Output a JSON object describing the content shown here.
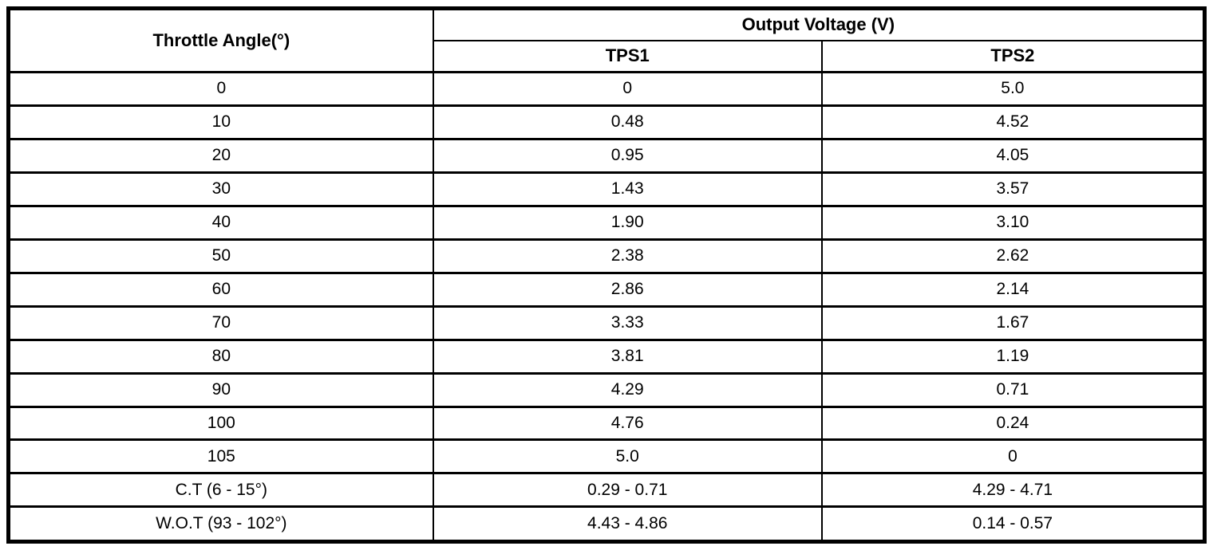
{
  "table": {
    "col1_header": "Throttle Angle(°)",
    "group_header": "Output Voltage (V)",
    "sub_headers": [
      "TPS1",
      "TPS2"
    ],
    "rows": [
      {
        "angle": "0",
        "tps1": "0",
        "tps2": "5.0"
      },
      {
        "angle": "10",
        "tps1": "0.48",
        "tps2": "4.52"
      },
      {
        "angle": "20",
        "tps1": "0.95",
        "tps2": "4.05"
      },
      {
        "angle": "30",
        "tps1": "1.43",
        "tps2": "3.57"
      },
      {
        "angle": "40",
        "tps1": "1.90",
        "tps2": "3.10"
      },
      {
        "angle": "50",
        "tps1": "2.38",
        "tps2": "2.62"
      },
      {
        "angle": "60",
        "tps1": "2.86",
        "tps2": "2.14"
      },
      {
        "angle": "70",
        "tps1": "3.33",
        "tps2": "1.67"
      },
      {
        "angle": "80",
        "tps1": "3.81",
        "tps2": "1.19"
      },
      {
        "angle": "90",
        "tps1": "4.29",
        "tps2": "0.71"
      },
      {
        "angle": "100",
        "tps1": "4.76",
        "tps2": "0.24"
      },
      {
        "angle": "105",
        "tps1": "5.0",
        "tps2": "0"
      },
      {
        "angle": "C.T (6 - 15°)",
        "tps1": "0.29 - 0.71",
        "tps2": "4.29 - 4.71"
      },
      {
        "angle": "W.O.T (93 - 102°)",
        "tps1": "4.43 - 4.86",
        "tps2": "0.14 - 0.57"
      }
    ]
  },
  "colors": {
    "border": "#000000",
    "text": "#000000",
    "background": "#ffffff"
  }
}
